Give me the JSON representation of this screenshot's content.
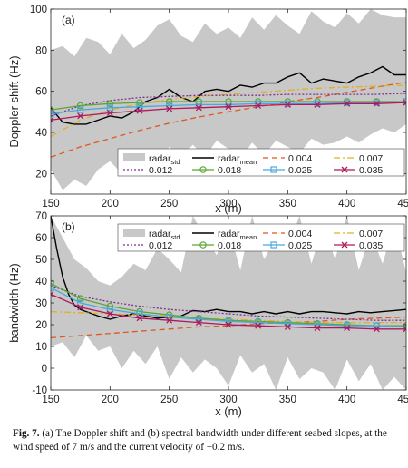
{
  "caption": {
    "label": "Fig. 7.",
    "text": "(a) The Doppler shift and (b) spectral bandwidth under different seabed slopes, at the wind speed of 7 m/s and the current velocity of −0.2 m/s."
  },
  "colors": {
    "std_band": "#c8c8c8",
    "mean": "#000000",
    "s0004": "#e0581c",
    "s0007": "#e0b020",
    "s0012": "#7e2f8e",
    "s0018": "#5aa632",
    "s0025": "#4aa8e0",
    "s0035": "#b0185a"
  },
  "legend": {
    "std_label": "radar",
    "std_sub": "std",
    "mean_label": "radar",
    "mean_sub": "mean",
    "items": [
      "0.004",
      "0.007",
      "0.012",
      "0.018",
      "0.025",
      "0.035"
    ]
  },
  "chart_data": [
    {
      "type": "line",
      "panel_label": "(a)",
      "xlabel": "x (m)",
      "ylabel": "Doppler shift (Hz)",
      "xlim": [
        150,
        450
      ],
      "ylim": [
        10,
        100
      ],
      "xticks": [
        150,
        200,
        250,
        300,
        350,
        400,
        450
      ],
      "yticks": [
        20,
        40,
        60,
        80,
        100
      ],
      "std_band": {
        "x": [
          150,
          160,
          170,
          180,
          190,
          200,
          210,
          220,
          230,
          240,
          250,
          260,
          270,
          280,
          290,
          300,
          310,
          320,
          330,
          340,
          350,
          360,
          370,
          380,
          390,
          400,
          410,
          420,
          430,
          440,
          450
        ],
        "upper": [
          80,
          82,
          77,
          86,
          84,
          78,
          88,
          81,
          85,
          92,
          95,
          87,
          84,
          93,
          88,
          91,
          86,
          96,
          90,
          97,
          92,
          88,
          99,
          94,
          91,
          98,
          93,
          100,
          97,
          96,
          96
        ],
        "lower": [
          22,
          12,
          17,
          14,
          22,
          26,
          20,
          30,
          26,
          24,
          33,
          28,
          34,
          28,
          36,
          32,
          27,
          35,
          29,
          36,
          33,
          30,
          37,
          34,
          35,
          38,
          35,
          39,
          42,
          40,
          44
        ]
      },
      "series": [
        {
          "name": "radar_mean",
          "x": [
            150,
            160,
            170,
            180,
            190,
            200,
            210,
            220,
            230,
            240,
            250,
            260,
            270,
            280,
            290,
            300,
            310,
            320,
            330,
            340,
            350,
            360,
            370,
            380,
            390,
            400,
            410,
            420,
            430,
            440,
            450
          ],
          "values": [
            52,
            45,
            44,
            44,
            46,
            48,
            47,
            50,
            55,
            57,
            61,
            57,
            55,
            60,
            61,
            60,
            63,
            62,
            64,
            64,
            67,
            69,
            64,
            66,
            65,
            64,
            67,
            69,
            72,
            68,
            68
          ]
        },
        {
          "name": "0.004",
          "x": [
            150,
            175,
            200,
            225,
            250,
            275,
            300,
            325,
            350,
            375,
            400,
            425,
            450
          ],
          "values": [
            28,
            33,
            37,
            41,
            44.5,
            47.5,
            50,
            52.5,
            55,
            57,
            59.5,
            62,
            64.5
          ]
        },
        {
          "name": "0.007",
          "x": [
            150,
            175,
            200,
            225,
            250,
            275,
            300,
            325,
            350,
            375,
            400,
            425,
            450
          ],
          "values": [
            38,
            46,
            51,
            54,
            56,
            57.5,
            58.5,
            59.5,
            60.5,
            61.5,
            62,
            62.5,
            63
          ]
        },
        {
          "name": "0.012",
          "x": [
            150,
            175,
            200,
            225,
            250,
            275,
            300,
            325,
            350,
            375,
            400,
            425,
            450
          ],
          "values": [
            48,
            53,
            55.5,
            57,
            57.5,
            58,
            58,
            58,
            58.5,
            58.5,
            58.5,
            58.5,
            59
          ]
        },
        {
          "name": "0.018",
          "x": [
            150,
            175,
            200,
            225,
            250,
            275,
            300,
            325,
            350,
            375,
            400,
            425,
            450
          ],
          "values": [
            51,
            53,
            54,
            54.5,
            55,
            55,
            55,
            55,
            55,
            55,
            55,
            55,
            55
          ]
        },
        {
          "name": "0.025",
          "x": [
            150,
            175,
            200,
            225,
            250,
            275,
            300,
            325,
            350,
            375,
            400,
            425,
            450
          ],
          "values": [
            49,
            51,
            52,
            52.5,
            53,
            53.5,
            53.5,
            54,
            54,
            54,
            54.5,
            54.5,
            55
          ]
        },
        {
          "name": "0.035",
          "x": [
            150,
            175,
            200,
            225,
            250,
            275,
            300,
            325,
            350,
            375,
            400,
            425,
            450
          ],
          "values": [
            46,
            48,
            49.5,
            50.5,
            51.5,
            52,
            52.5,
            53,
            53.5,
            53.5,
            54,
            54,
            54.5
          ]
        }
      ]
    },
    {
      "type": "line",
      "panel_label": "(b)",
      "xlabel": "x (m)",
      "ylabel": "bandwidth (Hz)",
      "xlim": [
        150,
        450
      ],
      "ylim": [
        -10,
        70
      ],
      "xticks": [
        150,
        200,
        250,
        300,
        350,
        400,
        450
      ],
      "yticks": [
        -10,
        0,
        10,
        20,
        30,
        40,
        50,
        60,
        70
      ],
      "std_band": {
        "x": [
          150,
          160,
          170,
          180,
          190,
          200,
          210,
          220,
          230,
          240,
          250,
          260,
          270,
          280,
          290,
          300,
          310,
          320,
          330,
          340,
          350,
          360,
          370,
          380,
          390,
          400,
          410,
          420,
          430,
          440,
          450
        ],
        "upper": [
          70,
          60,
          50,
          46,
          40,
          38,
          42,
          48,
          45,
          55,
          50,
          44,
          70,
          60,
          52,
          65,
          45,
          70,
          50,
          60,
          55,
          70,
          48,
          66,
          50,
          70,
          45,
          62,
          48,
          66,
          44
        ],
        "lower": [
          10,
          12,
          5,
          15,
          8,
          10,
          0,
          8,
          2,
          10,
          -5,
          5,
          -2,
          4,
          0,
          -8,
          6,
          -2,
          2,
          -10,
          5,
          -5,
          0,
          -2,
          -10,
          4,
          -6,
          2,
          -10,
          -4,
          -10
        ]
      },
      "series": [
        {
          "name": "radar_mean",
          "x": [
            150,
            155,
            160,
            165,
            170,
            175,
            180,
            190,
            200,
            210,
            220,
            230,
            240,
            250,
            260,
            270,
            280,
            290,
            300,
            310,
            320,
            330,
            340,
            350,
            360,
            370,
            380,
            390,
            400,
            410,
            420,
            430,
            440,
            450
          ],
          "values": [
            70,
            55,
            42,
            34,
            29,
            27,
            26,
            24,
            22.5,
            24,
            25,
            24,
            23,
            23.5,
            24,
            26.5,
            26,
            27,
            26,
            26,
            25,
            26,
            25,
            26,
            25,
            26,
            26,
            25.5,
            25,
            26,
            25.5,
            26,
            26.5,
            27
          ]
        },
        {
          "name": "0.004",
          "x": [
            150,
            175,
            200,
            225,
            250,
            275,
            300,
            325,
            350,
            375,
            400,
            425,
            450
          ],
          "values": [
            14,
            15,
            16,
            17,
            18,
            19,
            19.5,
            20.5,
            21,
            21.5,
            22.5,
            23,
            23.5
          ]
        },
        {
          "name": "0.007",
          "x": [
            150,
            175,
            200,
            225,
            250,
            275,
            300,
            325,
            350,
            375,
            400,
            425,
            450
          ],
          "values": [
            26,
            25.5,
            25,
            24.5,
            24,
            23,
            22.5,
            22,
            21.5,
            21,
            21,
            21,
            21
          ]
        },
        {
          "name": "0.012",
          "x": [
            150,
            175,
            200,
            225,
            250,
            275,
            300,
            325,
            350,
            375,
            400,
            425,
            450
          ],
          "values": [
            38,
            33,
            30.5,
            28.5,
            27,
            26,
            25,
            24,
            23.5,
            23,
            22.5,
            22,
            22
          ]
        },
        {
          "name": "0.018",
          "x": [
            150,
            175,
            200,
            225,
            250,
            275,
            300,
            325,
            350,
            375,
            400,
            425,
            450
          ],
          "values": [
            39,
            32,
            28.5,
            26,
            24.5,
            23,
            22,
            21.5,
            21,
            20.5,
            20,
            19.5,
            19.5
          ]
        },
        {
          "name": "0.025",
          "x": [
            150,
            175,
            200,
            225,
            250,
            275,
            300,
            325,
            350,
            375,
            400,
            425,
            450
          ],
          "values": [
            37,
            30,
            27,
            25,
            23.5,
            22.5,
            21.5,
            21,
            20.5,
            20,
            19.5,
            19.5,
            19
          ]
        },
        {
          "name": "0.035",
          "x": [
            150,
            175,
            200,
            225,
            250,
            275,
            300,
            325,
            350,
            375,
            400,
            425,
            450
          ],
          "values": [
            34,
            28,
            25,
            23,
            22,
            21,
            20,
            19.5,
            19,
            18.5,
            18.5,
            18,
            18
          ]
        }
      ]
    }
  ]
}
